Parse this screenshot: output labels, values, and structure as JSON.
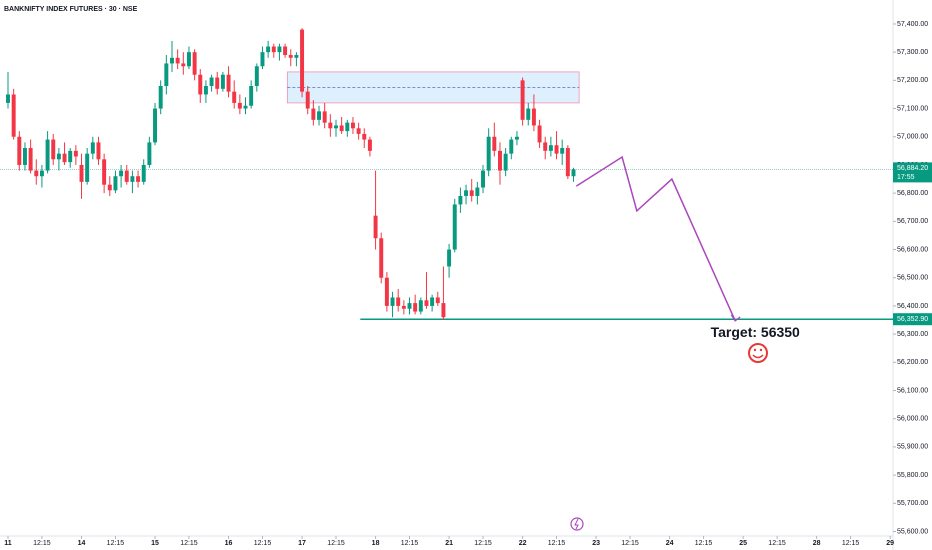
{
  "chart_data": {
    "type": "candlestick",
    "title": "BANKNIFTY INDEX FUTURES · 30 · NSE",
    "x": [
      0,
      1,
      2,
      3,
      4,
      5,
      6,
      7,
      8,
      9,
      10,
      11,
      12,
      13,
      14,
      15,
      16,
      17,
      18,
      19,
      20,
      21,
      22,
      23,
      24,
      25,
      26,
      27,
      28,
      29,
      30,
      31,
      32,
      33,
      34,
      35,
      36,
      37,
      38,
      39,
      40,
      41,
      42,
      43,
      44,
      45,
      46,
      47,
      48,
      49,
      50,
      51,
      52,
      53,
      54,
      55,
      56,
      57,
      58,
      59,
      60,
      61,
      62,
      63,
      64,
      65,
      66,
      67,
      68,
      69,
      70,
      71,
      72,
      73,
      74,
      75,
      76,
      77,
      78,
      79,
      80,
      81,
      82,
      83,
      84,
      85,
      86,
      87,
      88,
      89,
      90,
      91,
      92,
      93,
      94,
      95,
      96,
      97,
      98,
      99,
      100
    ],
    "open": [
      57120,
      57150,
      57000,
      56900,
      56960,
      56880,
      56860,
      56880,
      56990,
      56920,
      56940,
      56910,
      56950,
      56900,
      56840,
      56940,
      56980,
      56920,
      56830,
      56810,
      56860,
      56880,
      56840,
      56860,
      56840,
      56900,
      56980,
      57100,
      57180,
      57260,
      57280,
      57260,
      57250,
      57300,
      57220,
      57150,
      57180,
      57210,
      57170,
      57220,
      57160,
      57120,
      57100,
      57110,
      57180,
      57250,
      57300,
      57320,
      57300,
      57320,
      57290,
      57280,
      57380,
      57160,
      57100,
      57060,
      57090,
      57050,
      57030,
      57040,
      57020,
      57050,
      57030,
      57010,
      56990,
      56720,
      56640,
      56500,
      56400,
      56430,
      56400,
      56390,
      56410,
      56380,
      56420,
      56400,
      56430,
      56410,
      56540,
      56600,
      56760,
      56790,
      56810,
      56790,
      56820,
      56880,
      57000,
      56950,
      56880,
      56940,
      56990,
      57200,
      57060,
      57100,
      57040,
      56980,
      56950,
      56970,
      56940,
      56960,
      56860
    ],
    "high": [
      57230,
      57170,
      57020,
      56980,
      56990,
      56920,
      56900,
      57020,
      57010,
      56960,
      56980,
      56960,
      56970,
      56940,
      56960,
      57000,
      57000,
      56940,
      56860,
      56880,
      56900,
      56900,
      56880,
      56880,
      56920,
      57000,
      57120,
      57200,
      57290,
      57340,
      57310,
      57300,
      57320,
      57310,
      57240,
      57200,
      57220,
      57230,
      57230,
      57250,
      57200,
      57150,
      57140,
      57200,
      57260,
      57320,
      57340,
      57330,
      57330,
      57330,
      57310,
      57300,
      57385,
      57180,
      57130,
      57110,
      57120,
      57080,
      57060,
      57070,
      57060,
      57070,
      57050,
      57030,
      57000,
      56880,
      56660,
      56520,
      56450,
      56460,
      56420,
      56430,
      56440,
      56430,
      56520,
      56440,
      56450,
      56540,
      56620,
      56780,
      56820,
      56830,
      56850,
      56840,
      56900,
      57030,
      57050,
      56980,
      56960,
      57000,
      57020,
      57210,
      57120,
      57150,
      57060,
      57000,
      57000,
      57020,
      56990,
      56970,
      56890
    ],
    "low": [
      57100,
      56990,
      56880,
      56880,
      56870,
      56830,
      56820,
      56870,
      56900,
      56880,
      56900,
      56890,
      56900,
      56780,
      56830,
      56920,
      56900,
      56800,
      56790,
      56800,
      56820,
      56830,
      56800,
      56820,
      56830,
      56890,
      56970,
      57080,
      57150,
      57230,
      57240,
      57220,
      57240,
      57200,
      57120,
      57120,
      57160,
      57150,
      57160,
      57140,
      57100,
      57080,
      57080,
      57100,
      57160,
      57240,
      57280,
      57280,
      57270,
      57280,
      57250,
      57250,
      57140,
      57080,
      57040,
      57040,
      57030,
      57000,
      57000,
      57010,
      57000,
      57010,
      56990,
      56960,
      56930,
      56600,
      56480,
      56380,
      56360,
      56380,
      56370,
      56370,
      56370,
      56370,
      56390,
      56380,
      56400,
      56350,
      56500,
      56590,
      56730,
      56760,
      56770,
      56760,
      56800,
      56860,
      56930,
      56830,
      56860,
      56920,
      56970,
      57040,
      57040,
      57020,
      56960,
      56920,
      56930,
      56920,
      56900,
      56850,
      56840
    ],
    "close": [
      57150,
      57000,
      56900,
      56960,
      56880,
      56860,
      56880,
      56990,
      56920,
      56940,
      56910,
      56950,
      56930,
      56840,
      56940,
      56980,
      56920,
      56830,
      56810,
      56860,
      56880,
      56840,
      56860,
      56840,
      56900,
      56980,
      57100,
      57180,
      57260,
      57280,
      57260,
      57250,
      57300,
      57220,
      57150,
      57180,
      57210,
      57170,
      57220,
      57160,
      57120,
      57100,
      57110,
      57180,
      57250,
      57300,
      57320,
      57300,
      57320,
      57290,
      57280,
      57290,
      57160,
      57100,
      57060,
      57090,
      57050,
      57030,
      57040,
      57020,
      57050,
      57030,
      57010,
      56990,
      56950,
      56640,
      56500,
      56400,
      56430,
      56400,
      56390,
      56410,
      56380,
      56420,
      56400,
      56430,
      56410,
      56360,
      56600,
      56760,
      56790,
      56810,
      56790,
      56820,
      56880,
      57000,
      56950,
      56880,
      56940,
      56990,
      57000,
      57060,
      57100,
      57040,
      56980,
      56950,
      56970,
      56940,
      56960,
      56860,
      56884.2
    ],
    "up_color": "#089981",
    "down_color": "#f23645",
    "xlim": [
      -1.415,
      156.5
    ],
    "ylim": [
      55584,
      57485
    ],
    "xticks": [
      {
        "value": 0,
        "label": "11"
      },
      {
        "value": 6,
        "label": "12:15"
      },
      {
        "value": 13,
        "label": "14"
      },
      {
        "value": 19,
        "label": "12:15"
      },
      {
        "value": 26,
        "label": "15"
      },
      {
        "value": 32,
        "label": "12:15"
      },
      {
        "value": 39,
        "label": "16"
      },
      {
        "value": 45,
        "label": "12:15"
      },
      {
        "value": 52,
        "label": "17"
      },
      {
        "value": 58,
        "label": "12:15"
      },
      {
        "value": 65,
        "label": "18"
      },
      {
        "value": 71,
        "label": "12:15"
      },
      {
        "value": 78,
        "label": "21"
      },
      {
        "value": 84,
        "label": "12:15"
      },
      {
        "value": 91,
        "label": "22"
      },
      {
        "value": 97,
        "label": "12:15"
      },
      {
        "value": 104,
        "label": "23"
      },
      {
        "value": 110,
        "label": "12:15"
      },
      {
        "value": 117,
        "label": "24"
      },
      {
        "value": 123,
        "label": "12:15"
      },
      {
        "value": 130,
        "label": "25"
      },
      {
        "value": 136,
        "label": "12:15"
      },
      {
        "value": 143,
        "label": "28"
      },
      {
        "value": 149,
        "label": "12:15"
      },
      {
        "value": 156,
        "label": "29"
      }
    ],
    "yticks": [
      {
        "value": 57400,
        "label": "57,400.00"
      },
      {
        "value": 57300,
        "label": "57,300.00"
      },
      {
        "value": 57200,
        "label": "57,200.00"
      },
      {
        "value": 57100,
        "label": "57,100.00"
      },
      {
        "value": 57000,
        "label": "57,000.00"
      },
      {
        "value": 56900,
        "label": "56,900.00"
      },
      {
        "value": 56800,
        "label": "56,800.00"
      },
      {
        "value": 56700,
        "label": "56,700.00"
      },
      {
        "value": 56600,
        "label": "56,600.00"
      },
      {
        "value": 56500,
        "label": "56,500.00"
      },
      {
        "value": 56400,
        "label": "56,400.00"
      },
      {
        "value": 56300,
        "label": "56,300.00"
      },
      {
        "value": 56200,
        "label": "56,200.00"
      },
      {
        "value": 56100,
        "label": "56,100.00"
      },
      {
        "value": 56000,
        "label": "56,000.00"
      },
      {
        "value": 55900,
        "label": "55,900.00"
      },
      {
        "value": 55800,
        "label": "55,800.00"
      },
      {
        "value": 55700,
        "label": "55,700.00"
      },
      {
        "value": 55600,
        "label": "55,600.00"
      }
    ],
    "last_price_label": "56,884.20",
    "countdown": "17:55",
    "zone": {
      "x": [
        49.4,
        101
      ],
      "y": [
        57120,
        57230
      ]
    },
    "hline": {
      "value": 56352.9,
      "label": "56,352.90",
      "start": 62.3
    },
    "projection": {
      "x": [
        100.5,
        108.6,
        111.2,
        117.4,
        128.6
      ],
      "y": [
        56825,
        56928,
        56737,
        56850,
        56347
      ]
    },
    "target_label": "Target: 56350"
  }
}
